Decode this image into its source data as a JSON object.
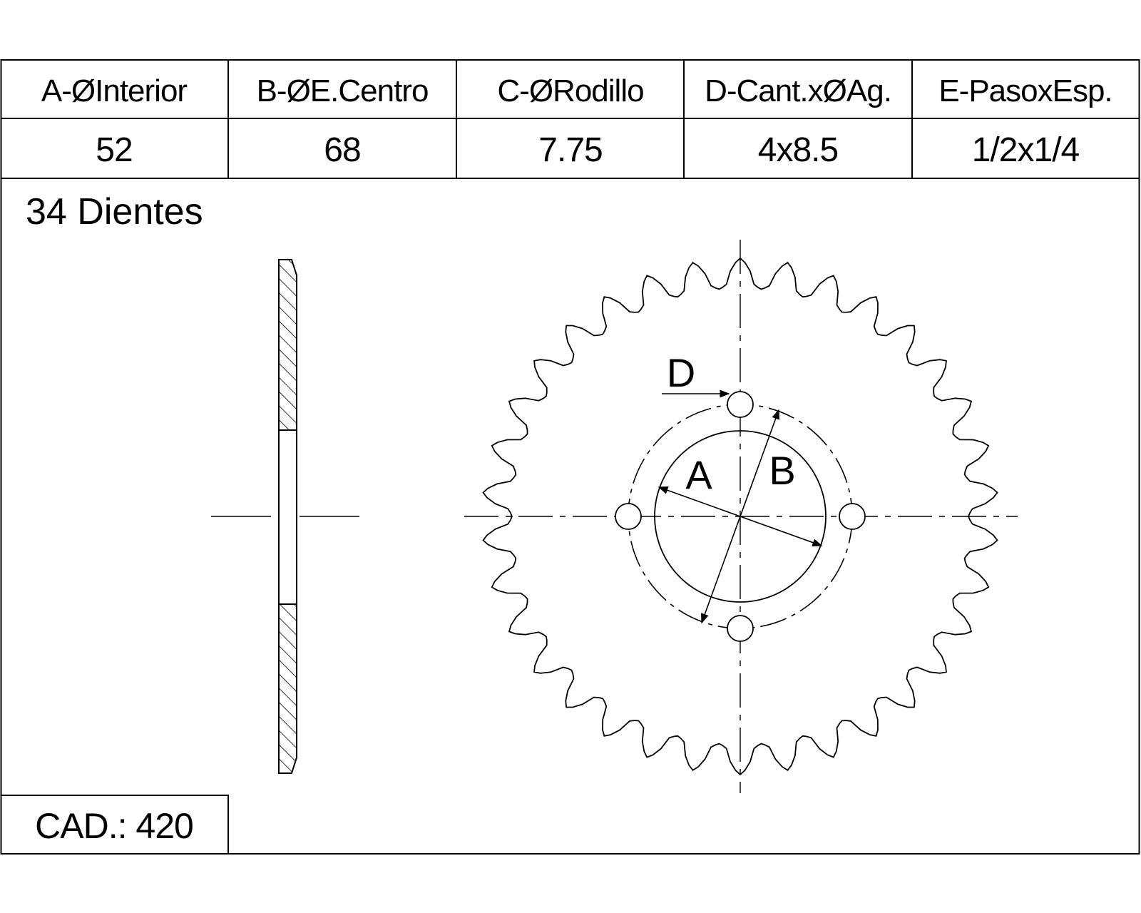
{
  "spec_table": {
    "headers": [
      "A-ØInterior",
      "B-ØE.Centro",
      "C-ØRodillo",
      "D-Cant.xØAg.",
      "E-PasoxEsp."
    ],
    "values": [
      "52",
      "68",
      "7.75",
      "4x8.5",
      "1/2x1/4"
    ]
  },
  "teeth_label": "34 Dientes",
  "teeth_count": 34,
  "pitch_label": "CAD.: 420",
  "dimension_labels": {
    "inner_diameter": "A",
    "bolt_circle": "B",
    "bolt_hole": "D"
  },
  "colors": {
    "line": "#000000",
    "background": "#ffffff"
  }
}
